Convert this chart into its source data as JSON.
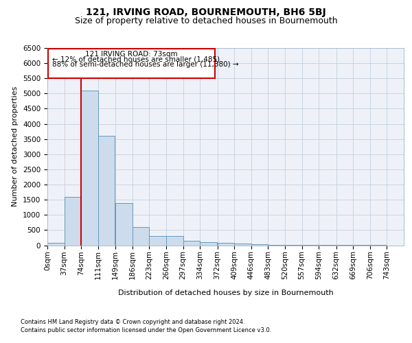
{
  "title": "121, IRVING ROAD, BOURNEMOUTH, BH6 5BJ",
  "subtitle": "Size of property relative to detached houses in Bournemouth",
  "xlabel": "Distribution of detached houses by size in Bournemouth",
  "ylabel": "Number of detached properties",
  "footer1": "Contains HM Land Registry data © Crown copyright and database right 2024.",
  "footer2": "Contains public sector information licensed under the Open Government Licence v3.0.",
  "annotation_line1": "121 IRVING ROAD: 73sqm",
  "annotation_line2": "← 12% of detached houses are smaller (1,485)",
  "annotation_line3": "88% of semi-detached houses are larger (11,380) →",
  "bar_left_edges": [
    0,
    37,
    74,
    111,
    149,
    186,
    223,
    260,
    297,
    334,
    372,
    409,
    446,
    483,
    520,
    557,
    594,
    632,
    669,
    706
  ],
  "bar_heights": [
    75,
    1600,
    5100,
    3600,
    1400,
    600,
    300,
    300,
    150,
    100,
    75,
    50,
    30,
    15,
    10,
    5,
    3,
    2,
    1,
    1
  ],
  "bin_width": 37,
  "tick_labels": [
    "0sqm",
    "37sqm",
    "74sqm",
    "111sqm",
    "149sqm",
    "186sqm",
    "223sqm",
    "260sqm",
    "297sqm",
    "334sqm",
    "372sqm",
    "409sqm",
    "446sqm",
    "483sqm",
    "520sqm",
    "557sqm",
    "594sqm",
    "632sqm",
    "669sqm",
    "706sqm",
    "743sqm"
  ],
  "bar_color": "#ccdcec",
  "bar_edge_color": "#6699bb",
  "vline_x": 73,
  "vline_color": "#cc0000",
  "ylim": [
    0,
    6500
  ],
  "yticks": [
    0,
    500,
    1000,
    1500,
    2000,
    2500,
    3000,
    3500,
    4000,
    4500,
    5000,
    5500,
    6000,
    6500
  ],
  "xlim_max": 780,
  "tick_positions": [
    0,
    37,
    74,
    111,
    149,
    186,
    223,
    260,
    297,
    334,
    372,
    409,
    446,
    483,
    520,
    557,
    594,
    632,
    669,
    706,
    743
  ],
  "grid_color": "#c8d4e0",
  "bg_color": "#eef2f8",
  "annotation_box_color": "#cc0000",
  "title_fontsize": 10,
  "subtitle_fontsize": 9,
  "axis_label_fontsize": 8,
  "tick_fontsize": 7.5,
  "ylabel_fontsize": 8
}
